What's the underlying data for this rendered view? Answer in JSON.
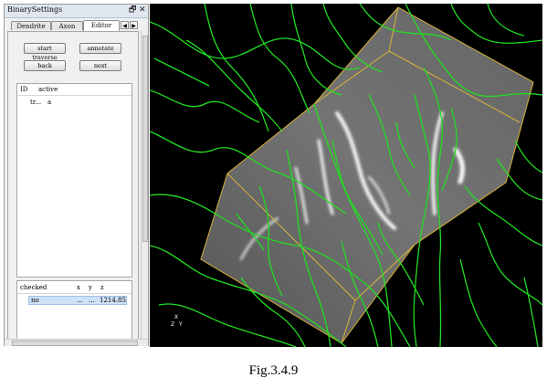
{
  "dock": {
    "title": "BinarySettings",
    "float_icon": "restore-icon",
    "close_icon": "close-icon",
    "float_glyph": "🗗",
    "close_glyph": "✕"
  },
  "tabs": [
    {
      "label": "Dendrite",
      "active": false
    },
    {
      "label": "Axon",
      "active": false
    },
    {
      "label": "Editor",
      "active": true
    }
  ],
  "tab_scroll": {
    "left": "◀",
    "right": "▶"
  },
  "buttons": {
    "start_traverse": "start traverse",
    "annotate": "annotate",
    "back": "back",
    "next": "next"
  },
  "trace_table": {
    "columns": [
      "ID",
      "active"
    ],
    "rows": [
      {
        "id": "tr...",
        "active": "a"
      }
    ]
  },
  "checked_table": {
    "columns": [
      "checked",
      "x",
      "y",
      "z"
    ],
    "rows": [
      {
        "checked": "no",
        "x": "...",
        "y": "...",
        "z": "1214.85"
      }
    ]
  },
  "viewport": {
    "background": "#000000",
    "trace_color": "#22dd22",
    "box_color": "#d9b43a",
    "axis_labels": {
      "x": "X",
      "y": "Y",
      "z": "Z"
    }
  },
  "caption": "Fig.3.4.9"
}
